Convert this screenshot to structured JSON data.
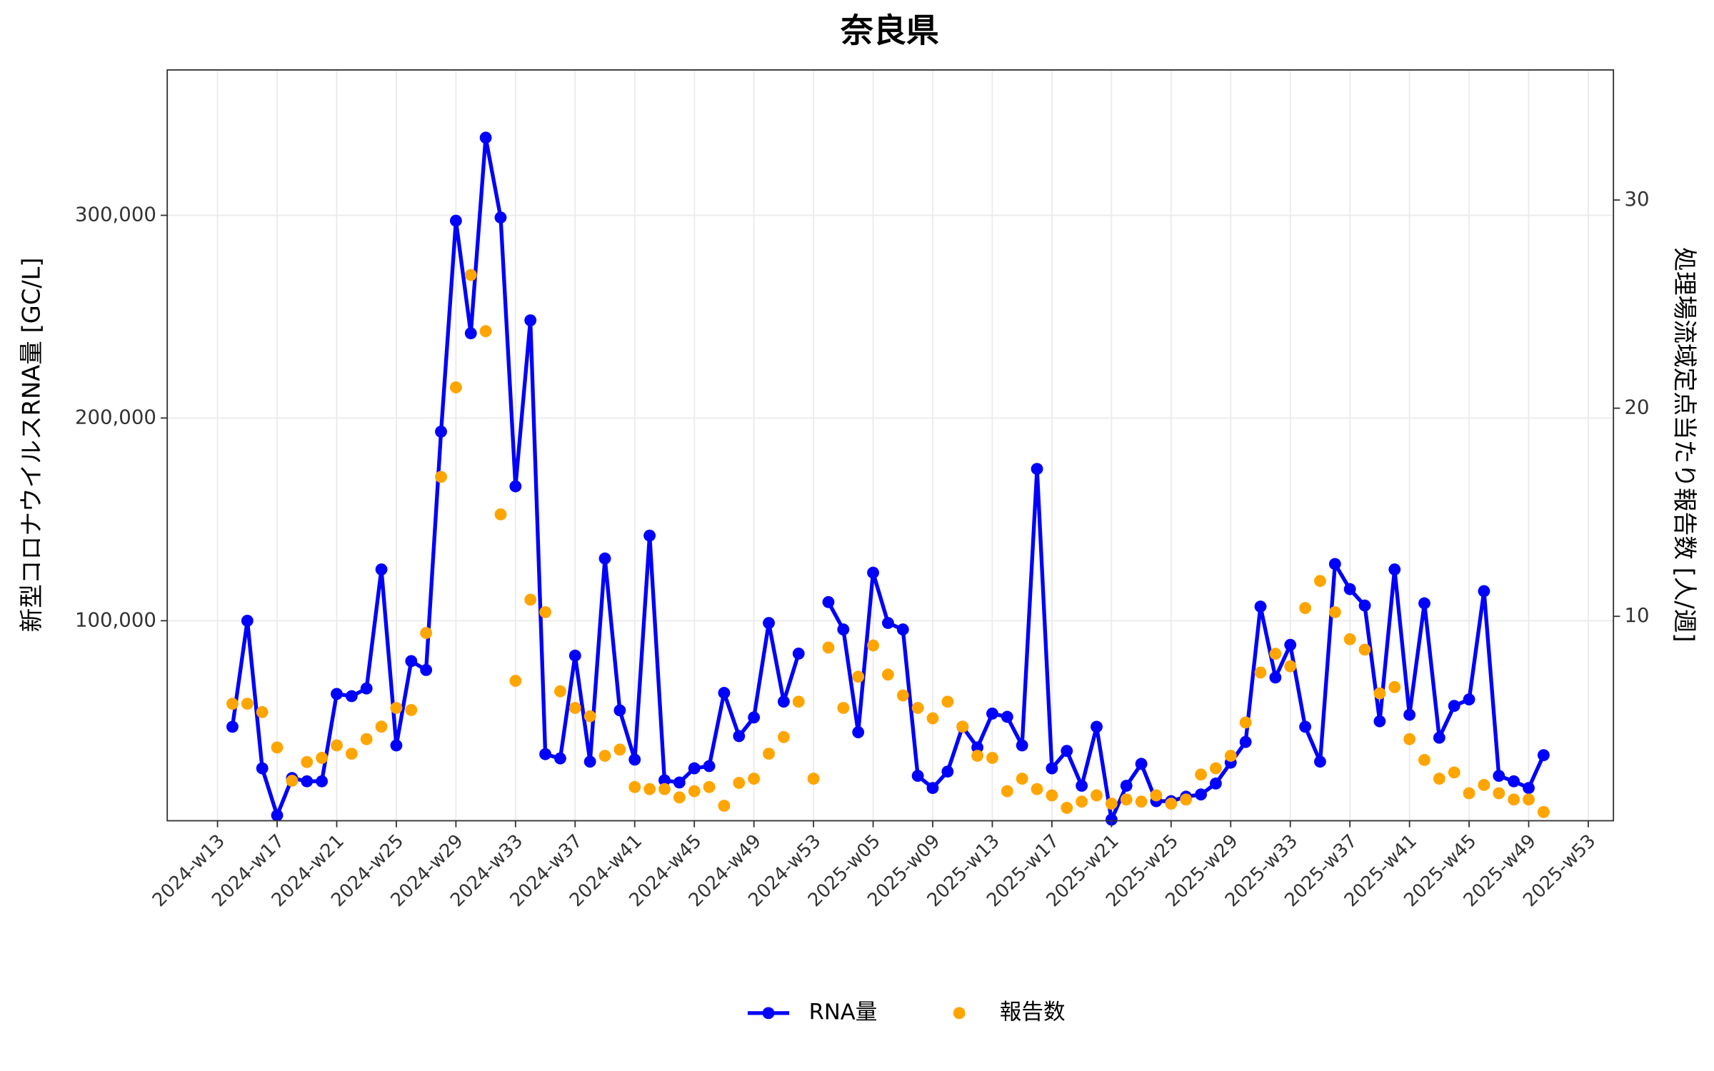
{
  "chart_data": {
    "type": "line",
    "title": "奈良県",
    "y_label": "新型コロナウイルスRNA量 [GC/L]",
    "y2_label": "処理場流域定点当たり報告数 [人/週]",
    "x": [
      "2024-w14",
      "2024-w15",
      "2024-w16",
      "2024-w17",
      "2024-w18",
      "2024-w19",
      "2024-w20",
      "2024-w21",
      "2024-w22",
      "2024-w23",
      "2024-w24",
      "2024-w25",
      "2024-w26",
      "2024-w27",
      "2024-w28",
      "2024-w29",
      "2024-w30",
      "2024-w31",
      "2024-w32",
      "2024-w33",
      "2024-w34",
      "2024-w35",
      "2024-w36",
      "2024-w37",
      "2024-w38",
      "2024-w39",
      "2024-w40",
      "2024-w41",
      "2024-w42",
      "2024-w43",
      "2024-w44",
      "2024-w45",
      "2024-w46",
      "2024-w47",
      "2024-w48",
      "2024-w49",
      "2024-w50",
      "2024-w51",
      "2024-w52",
      "2024-w53",
      "2025-w02",
      "2025-w03",
      "2025-w04",
      "2025-w05",
      "2025-w06",
      "2025-w07",
      "2025-w08",
      "2025-w09",
      "2025-w10",
      "2025-w11",
      "2025-w12",
      "2025-w13",
      "2025-w14",
      "2025-w15",
      "2025-w16",
      "2025-w17",
      "2025-w18",
      "2025-w19",
      "2025-w20",
      "2025-w21",
      "2025-w22",
      "2025-w23",
      "2025-w24",
      "2025-w25",
      "2025-w26",
      "2025-w27",
      "2025-w28",
      "2025-w29",
      "2025-w30",
      "2025-w31",
      "2025-w32",
      "2025-w33",
      "2025-w34",
      "2025-w35",
      "2025-w36",
      "2025-w37",
      "2025-w38",
      "2025-w39",
      "2025-w40",
      "2025-w41",
      "2025-w42",
      "2025-w43",
      "2025-w44",
      "2025-w45",
      "2025-w46",
      "2025-w47",
      "2025-w48",
      "2025-w49",
      "2025-w50"
    ],
    "series": [
      {
        "name": "RNA量",
        "color": "#0000ff",
        "style": "line-points",
        "axis": "y",
        "values": [
          47700,
          100000,
          27200,
          4000,
          22400,
          20800,
          20800,
          63900,
          62800,
          66600,
          125300,
          38500,
          80100,
          75700,
          193300,
          297300,
          241800,
          338300,
          298900,
          166300,
          248200,
          34200,
          32100,
          82800,
          30500,
          130700,
          55800,
          31500,
          142000,
          21300,
          20200,
          27200,
          28300,
          64400,
          43100,
          52300,
          98900,
          60100,
          83800,
          null,
          109200,
          95700,
          45000,
          123700,
          98900,
          95700,
          23500,
          17500,
          25600,
          47700,
          37500,
          54200,
          52600,
          38500,
          174900,
          27200,
          35800,
          18600,
          47700,
          1900,
          18600,
          29400,
          11000,
          11000,
          13200,
          14300,
          19700,
          30000,
          40200,
          107000,
          72000,
          88100,
          47700,
          30500,
          128000,
          115600,
          107500,
          50400,
          125300,
          53600,
          108600,
          42300,
          58000,
          61200,
          114600,
          23500,
          20800,
          17500,
          33700
        ]
      },
      {
        "name": "報告数",
        "color": "#ffa500",
        "style": "points",
        "axis": "y2",
        "values": [
          5.8,
          5.8,
          5.4,
          3.7,
          2.1,
          3.0,
          3.2,
          3.8,
          3.4,
          4.1,
          4.7,
          5.6,
          5.5,
          9.2,
          16.7,
          21.0,
          26.4,
          23.7,
          14.9,
          6.9,
          10.8,
          10.2,
          6.4,
          5.6,
          5.2,
          3.3,
          3.6,
          1.8,
          1.7,
          1.7,
          1.3,
          1.6,
          1.8,
          0.9,
          2.0,
          2.2,
          3.4,
          4.2,
          5.9,
          2.2,
          8.5,
          5.6,
          7.1,
          8.6,
          7.2,
          6.2,
          5.6,
          5.1,
          5.9,
          4.7,
          3.3,
          3.2,
          1.6,
          2.2,
          1.7,
          1.4,
          0.8,
          1.1,
          1.4,
          1.0,
          1.2,
          1.1,
          1.4,
          1.0,
          1.2,
          2.4,
          2.7,
          3.3,
          4.9,
          7.3,
          8.2,
          7.6,
          10.4,
          11.7,
          10.2,
          8.9,
          8.4,
          6.3,
          6.6,
          4.1,
          3.1,
          2.2,
          2.5,
          1.5,
          1.9,
          1.5,
          1.2,
          1.2,
          0.6
        ]
      }
    ],
    "xticks": [
      "2024-w13",
      "2024-w17",
      "2024-w21",
      "2024-w25",
      "2024-w29",
      "2024-w33",
      "2024-w37",
      "2024-w41",
      "2024-w45",
      "2024-w49",
      "2024-w53",
      "2025-w05",
      "2025-w09",
      "2025-w13",
      "2025-w17",
      "2025-w21",
      "2025-w25",
      "2025-w29",
      "2025-w33",
      "2025-w37",
      "2025-w41",
      "2025-w45",
      "2025-w49",
      "2025-w53"
    ],
    "ylim": [
      1350,
      371700
    ],
    "yticks": [
      {
        "value": 100000,
        "label": "100,000"
      },
      {
        "value": 200000,
        "label": "200,000"
      },
      {
        "value": 300000,
        "label": "300,000"
      }
    ],
    "y2lim": [
      0.18,
      36.25
    ],
    "y2ticks": [
      10,
      20,
      30
    ],
    "grid": true,
    "legend": "bottom"
  }
}
